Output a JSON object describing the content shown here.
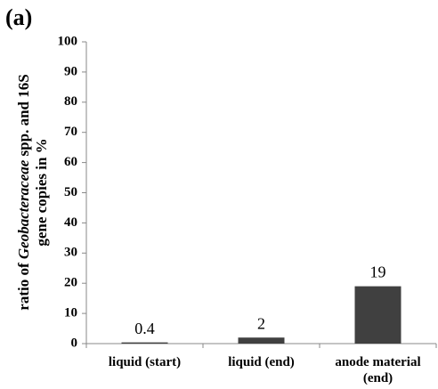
{
  "chart_data": {
    "type": "bar",
    "panel_label": "(a)",
    "ylabel": {
      "line1": [
        "ratio of  ",
        "Geobacteraceae",
        " spp. and 16S"
      ],
      "line2": "gene copies in %"
    },
    "categories": [
      "liquid (start)",
      "liquid (end)",
      "anode material (end)"
    ],
    "values": [
      0.4,
      2,
      19
    ],
    "color": "#404040",
    "ylim": [
      0,
      100
    ],
    "yticks": [
      0,
      10,
      20,
      30,
      40,
      50,
      60,
      70,
      80,
      90,
      100
    ]
  }
}
